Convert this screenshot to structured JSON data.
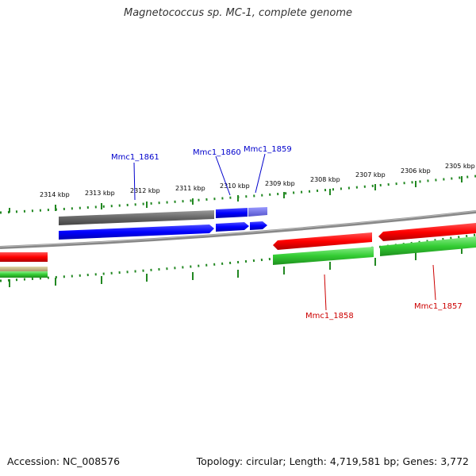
{
  "title": "Magnetococcus sp. MC-1, complete genome",
  "footer": {
    "accession": "Accession: NC_008576",
    "topology": "Topology: circular; Length: 4,719,581 bp; Genes: 3,772"
  },
  "scale_labels": [
    "2314 kbp",
    "2313 kbp",
    "2312 kbp",
    "2311 kbp",
    "2310 kbp",
    "2309 kbp",
    "2308 kbp",
    "2307 kbp",
    "2306 kbp",
    "2305 kbp"
  ],
  "genes": [
    {
      "label": "Mmc1_1861",
      "strand": "forward"
    },
    {
      "label": "Mmc1_1860",
      "strand": "forward"
    },
    {
      "label": "Mmc1_1859",
      "strand": "forward"
    },
    {
      "label": "Mmc1_1858",
      "strand": "reverse"
    },
    {
      "label": "Mmc1_1857",
      "strand": "reverse"
    }
  ],
  "colors": {
    "forward_label": "#0000cc",
    "reverse_label": "#cc0000",
    "forward_cds": "#0000ff",
    "reverse_cds": "#ff0000",
    "gene": "#33cc33",
    "tick": "#228822",
    "backbone": "#888888",
    "gene_grey": "#666666"
  }
}
